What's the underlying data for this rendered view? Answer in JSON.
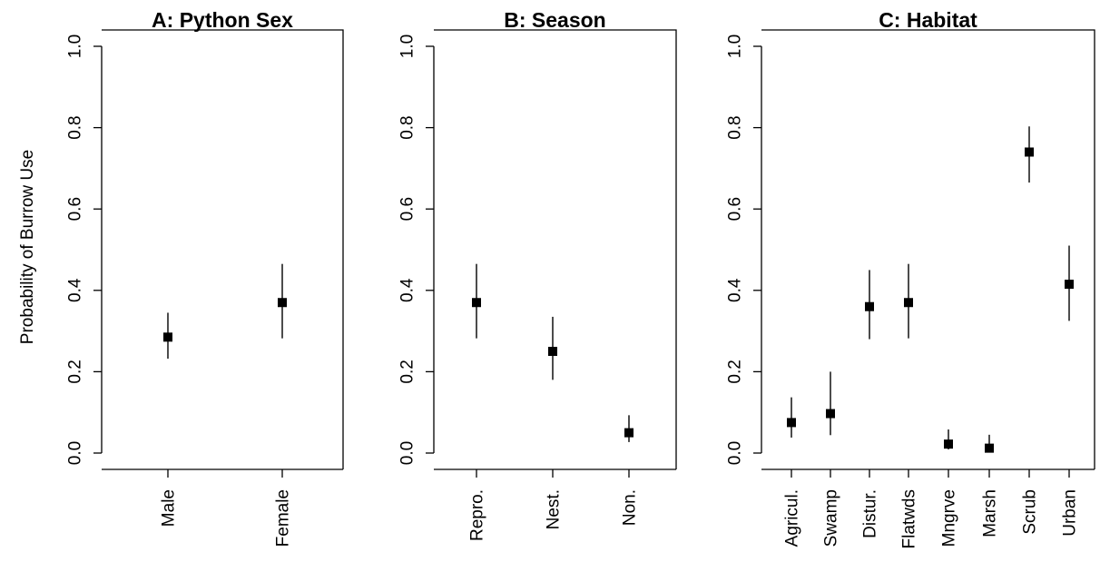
{
  "ylabel": "Probability of Burrow Use",
  "chart_data": [
    {
      "type": "scatter",
      "title": "A: Python Sex",
      "categories": [
        "Male",
        "Female"
      ],
      "values": [
        0.285,
        0.37
      ],
      "lower": [
        0.232,
        0.282
      ],
      "upper": [
        0.345,
        0.465
      ],
      "ylim": [
        0,
        1
      ],
      "yticks": [
        "0.0",
        "0.2",
        "0.4",
        "0.6",
        "0.8",
        "1.0"
      ]
    },
    {
      "type": "scatter",
      "title": "B: Season",
      "categories": [
        "Repro.",
        "Nest.",
        "Non."
      ],
      "values": [
        0.37,
        0.25,
        0.05
      ],
      "lower": [
        0.282,
        0.18,
        0.027
      ],
      "upper": [
        0.465,
        0.335,
        0.093
      ],
      "ylim": [
        0,
        1
      ],
      "yticks": [
        "0.0",
        "0.2",
        "0.4",
        "0.6",
        "0.8",
        "1.0"
      ]
    },
    {
      "type": "scatter",
      "title": "C: Habitat",
      "categories": [
        "Agricul.",
        "Swamp",
        "Distur.",
        "Flatwds",
        "Mngrve",
        "Marsh",
        "Scrub",
        "Urban"
      ],
      "values": [
        0.075,
        0.097,
        0.36,
        0.37,
        0.022,
        0.012,
        0.74,
        0.415
      ],
      "lower": [
        0.038,
        0.044,
        0.28,
        0.282,
        0.009,
        0.003,
        0.665,
        0.325
      ],
      "upper": [
        0.137,
        0.2,
        0.45,
        0.465,
        0.058,
        0.045,
        0.803,
        0.51
      ],
      "ylim": [
        0,
        1
      ],
      "yticks": [
        "0.0",
        "0.2",
        "0.4",
        "0.6",
        "0.8",
        "1.0"
      ]
    }
  ]
}
